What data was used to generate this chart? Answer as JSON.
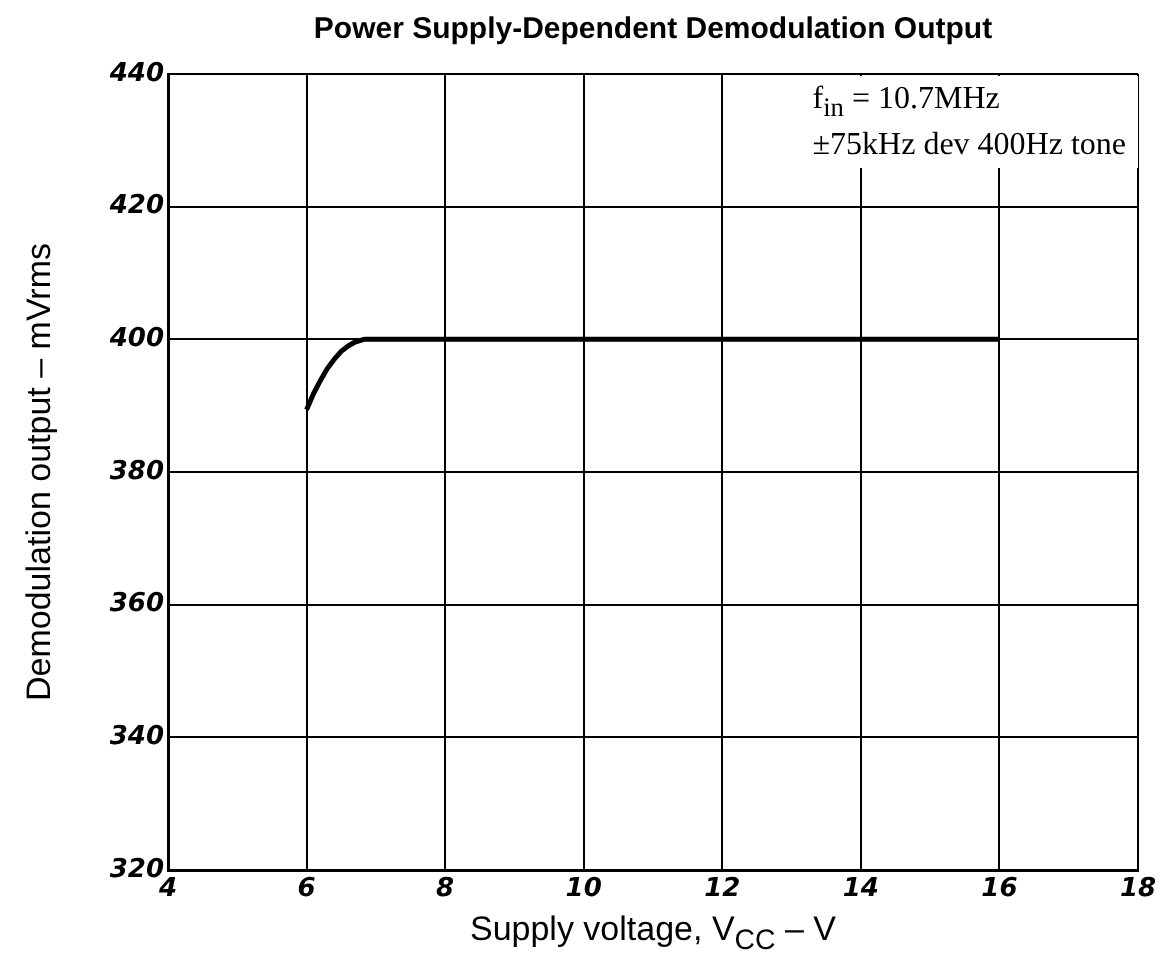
{
  "chart_data": {
    "type": "line",
    "title": "Power Supply-Dependent Demodulation Output",
    "xlabel": "Supply voltage, V$_{CC}$ – V",
    "ylabel": "Demodulation output – mVrms",
    "annotations": [
      "f$_{in}$ = 10.7MHz",
      "±75kHz dev 400Hz tone"
    ],
    "series": [
      {
        "color": "#000000",
        "x": [
          6,
          6.1,
          6.2,
          6.3,
          6.4,
          6.5,
          6.6,
          6.7,
          6.83,
          7,
          8,
          10,
          12,
          14,
          16
        ],
        "values": [
          389.4,
          391.8,
          393.8,
          395.6,
          397,
          398.2,
          399,
          399.6,
          400,
          400,
          400,
          400,
          400,
          400,
          400
        ]
      }
    ],
    "xlim": [
      4,
      18
    ],
    "xticks": [
      4,
      6,
      8,
      10,
      12,
      14,
      16,
      18
    ],
    "ylim": [
      320,
      440
    ],
    "yticks": [
      320,
      340,
      360,
      380,
      400,
      420,
      440
    ],
    "grid": true,
    "legend": false,
    "marker": "none",
    "line_style": "solid"
  }
}
